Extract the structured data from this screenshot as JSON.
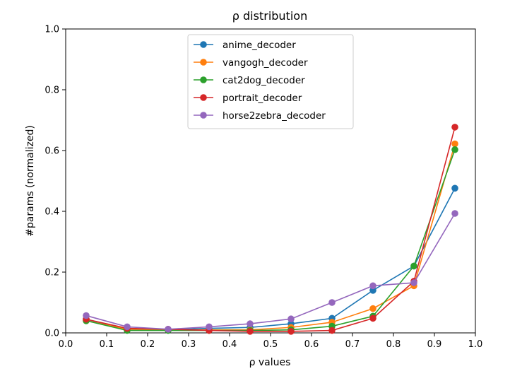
{
  "chart_data": {
    "type": "line",
    "title": "ρ distribution",
    "xlabel": "ρ values",
    "ylabel": "#params (normalized)",
    "xlim": [
      0.0,
      1.0
    ],
    "ylim": [
      0.0,
      1.0
    ],
    "xticks": [
      "0.0",
      "0.1",
      "0.2",
      "0.3",
      "0.4",
      "0.5",
      "0.6",
      "0.7",
      "0.8",
      "0.9",
      "1.0"
    ],
    "yticks": [
      "0.0",
      "0.2",
      "0.4",
      "0.6",
      "0.8",
      "1.0"
    ],
    "grid": false,
    "legend_position": "top-center",
    "x": [
      0.05,
      0.15,
      0.25,
      0.35,
      0.45,
      0.55,
      0.65,
      0.75,
      0.85,
      0.95
    ],
    "series": [
      {
        "name": "anime_decoder",
        "color": "#1f77b4",
        "values": [
          0.045,
          0.012,
          0.01,
          0.015,
          0.018,
          0.03,
          0.048,
          0.14,
          0.22,
          0.476
        ]
      },
      {
        "name": "vangogh_decoder",
        "color": "#ff7f0e",
        "values": [
          0.04,
          0.012,
          0.01,
          0.01,
          0.01,
          0.018,
          0.035,
          0.08,
          0.155,
          0.622
        ]
      },
      {
        "name": "cat2dog_decoder",
        "color": "#2ca02c",
        "values": [
          0.04,
          0.008,
          0.008,
          0.008,
          0.008,
          0.01,
          0.022,
          0.055,
          0.22,
          0.603
        ]
      },
      {
        "name": "portrait_decoder",
        "color": "#d62728",
        "values": [
          0.045,
          0.015,
          0.012,
          0.008,
          0.005,
          0.005,
          0.008,
          0.048,
          0.17,
          0.677
        ]
      },
      {
        "name": "horse2zebra_decoder",
        "color": "#9467bd",
        "values": [
          0.057,
          0.02,
          0.012,
          0.02,
          0.03,
          0.046,
          0.1,
          0.155,
          0.165,
          0.393
        ]
      }
    ]
  }
}
